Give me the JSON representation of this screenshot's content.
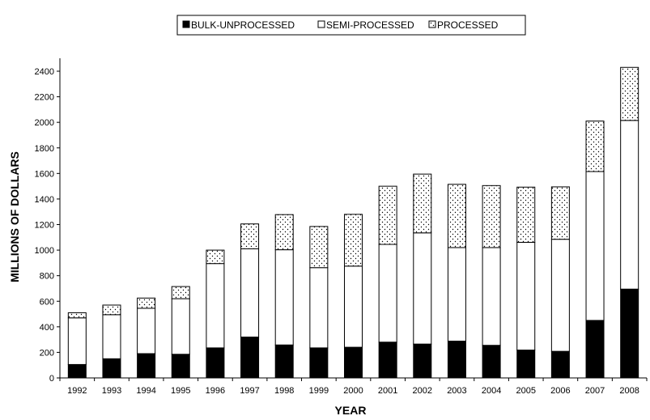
{
  "chart_data": {
    "type": "bar",
    "stacked": true,
    "categories": [
      "1992",
      "1993",
      "1994",
      "1995",
      "1996",
      "1997",
      "1998",
      "1999",
      "2000",
      "2001",
      "2002",
      "2003",
      "2004",
      "2005",
      "2006",
      "2007",
      "2008"
    ],
    "series": [
      {
        "name": "BULK-UNPROCESSED",
        "fill": "solid-black",
        "values": [
          105,
          150,
          190,
          185,
          235,
          320,
          258,
          235,
          240,
          280,
          265,
          288,
          255,
          218,
          208,
          450,
          695
        ]
      },
      {
        "name": "SEMI-PROCESSED",
        "fill": "white",
        "values": [
          365,
          345,
          355,
          435,
          660,
          690,
          745,
          628,
          635,
          765,
          870,
          732,
          765,
          843,
          877,
          1165,
          1320
        ]
      },
      {
        "name": "PROCESSED",
        "fill": "dotted",
        "values": [
          40,
          75,
          80,
          95,
          105,
          195,
          275,
          322,
          405,
          455,
          460,
          495,
          485,
          432,
          410,
          395,
          415
        ]
      }
    ],
    "ylabel": "MILLIONS OF DOLLARS",
    "xlabel": "YEAR",
    "ylim": [
      0,
      2400
    ],
    "yticks": [
      0,
      200,
      400,
      600,
      800,
      1000,
      1200,
      1400,
      1600,
      1800,
      2000,
      2200,
      2400
    ],
    "grid": false,
    "legend_position": "top-center"
  }
}
